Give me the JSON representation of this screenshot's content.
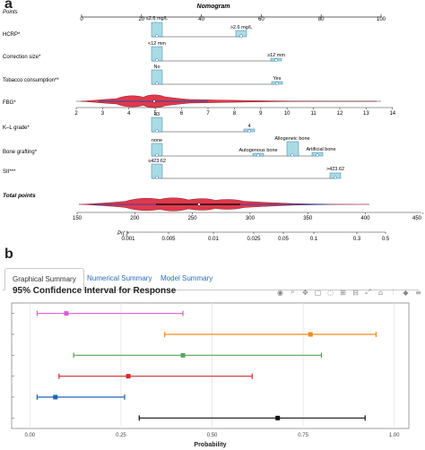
{
  "panel_a_letter": "a",
  "panel_b_letter": "b",
  "nomogram": {
    "title": "Nomogram",
    "points_label": "Points",
    "points_ticks": [
      "0",
      "20",
      "40",
      "60",
      "80",
      "100"
    ],
    "rows": [
      {
        "label": "HCRP*",
        "items": [
          "≤2.6 mg/L",
          ">2.6 mg/L"
        ]
      },
      {
        "label": "Correction size*",
        "items": [
          "<12 mm",
          "≥12 mm"
        ]
      },
      {
        "label": "Tobacco consumption**",
        "items": [
          "No",
          "Yes"
        ]
      },
      {
        "label": "FBG*",
        "items": []
      },
      {
        "label": "K–L grade*",
        "items": [
          "≤3",
          "4"
        ]
      },
      {
        "label": "Bone grafting*",
        "items": [
          "none",
          "Allogeneic bone",
          "Autogenous bone",
          "Artificial bone"
        ]
      },
      {
        "label": "SII***",
        "items": [
          "≤423.62",
          ">423.62"
        ]
      }
    ],
    "fbg_ticks": [
      "2",
      "3",
      "4",
      "5",
      "6",
      "7",
      "8",
      "9",
      "10",
      "11",
      "12",
      "13",
      "14"
    ],
    "total_label": "Total points",
    "total_ticks": [
      "150",
      "200",
      "250",
      "300",
      "350",
      "400",
      "450"
    ],
    "pr_label": "Pr( )",
    "pr_ticks": [
      "0.001",
      "0.005",
      "0.01",
      "0.025",
      "0.05",
      "0.1",
      "0.3",
      "0.5"
    ]
  },
  "tabs": [
    {
      "label": "Graphical Summary",
      "active": true
    },
    {
      "label": "Numerical Summary",
      "active": false
    },
    {
      "label": "Model Summary",
      "active": false
    }
  ],
  "ci_title": "95% Confidence Interval for Response",
  "toolbar_icons": [
    "camera-icon",
    "zoom-icon",
    "pan-icon",
    "box-select-icon",
    "lasso-icon",
    "zoom-in-icon",
    "zoom-out-icon",
    "autoscale-icon",
    "reset-axes-icon",
    "spike-lines-icon",
    "hover-closest-icon",
    "hover-compare-icon",
    "plotly-logo-icon"
  ],
  "chart_data": {
    "type": "scatter",
    "xlabel": "Probability",
    "xlim": [
      -0.05,
      1.04
    ],
    "xticks": [
      "0.00",
      "0.25",
      "0.50",
      "0.75",
      "1.00"
    ],
    "series": [
      {
        "color": "#d65fd6",
        "point": 0.1,
        "low": 0.02,
        "high": 0.42
      },
      {
        "color": "#f28b1c",
        "point": 0.77,
        "low": 0.37,
        "high": 0.95
      },
      {
        "color": "#58a55c",
        "point": 0.42,
        "low": 0.12,
        "high": 0.8
      },
      {
        "color": "#d62728",
        "point": 0.27,
        "low": 0.08,
        "high": 0.61
      },
      {
        "color": "#1f63b5",
        "point": 0.07,
        "low": 0.02,
        "high": 0.26
      },
      {
        "color": "#111111",
        "point": 0.68,
        "low": 0.3,
        "high": 0.92
      }
    ]
  }
}
